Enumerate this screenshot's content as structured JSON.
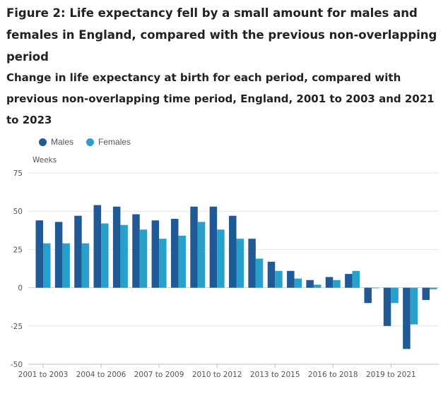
{
  "title": "Figure 2: Life expectancy fell by a small amount for males and females in England, compared with the previous non-overlapping period",
  "subtitle": "Change in life expectancy at birth for each period, compared with previous non-overlapping time period, England, 2001 to 2003 and 2021 to 2023",
  "colors": {
    "males": "#1f5a96",
    "females": "#27a0cc",
    "grid": "#e6e6e6",
    "axis": "#bbbbbb"
  },
  "chart_data": {
    "type": "bar",
    "ylabel": "Weeks",
    "ylim": [
      -50,
      75
    ],
    "yticks": [
      75,
      50,
      25,
      0,
      -25,
      -50
    ],
    "xtick_labels": [
      "2001 to 2003",
      "2004 to 2006",
      "2007 to 2009",
      "2010 to 2012",
      "2013 to 2015",
      "2016 to 2018",
      "2019 to 2021"
    ],
    "xtick_indices": [
      0,
      3,
      6,
      9,
      12,
      15,
      18
    ],
    "grid": true,
    "legend_position": "top-left",
    "series": [
      {
        "name": "Males",
        "values": [
          44,
          43,
          47,
          54,
          53,
          48,
          44,
          45,
          53,
          53,
          47,
          32,
          17,
          11,
          5,
          7,
          9,
          -10,
          -25,
          -40,
          -8
        ]
      },
      {
        "name": "Females",
        "values": [
          29,
          29,
          29,
          42,
          41,
          38,
          32,
          34,
          43,
          38,
          32,
          19,
          11,
          6,
          2,
          5,
          11,
          0,
          -10,
          -24,
          -1
        ]
      }
    ]
  }
}
